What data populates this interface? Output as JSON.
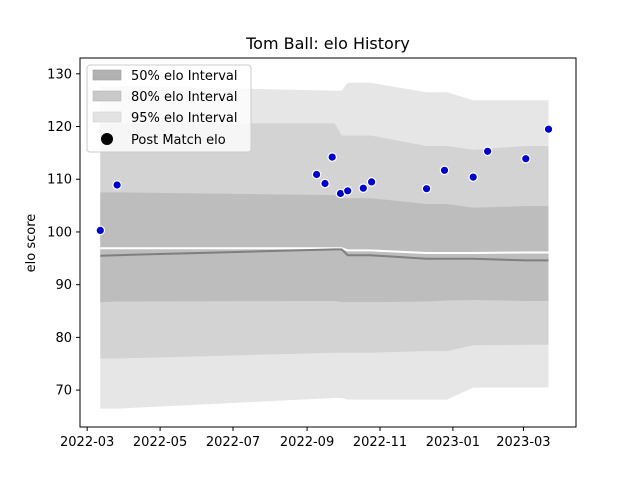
{
  "chart_data": {
    "type": "line",
    "title": "Tom Ball: elo History",
    "xlabel": "",
    "ylabel": "elo score",
    "x_type": "date",
    "xlim": [
      "2022-02-23",
      "2023-04-14"
    ],
    "ylim": [
      63.0,
      133.0
    ],
    "x_ticks": [
      "2022-03-01",
      "2022-05-01",
      "2022-07-01",
      "2022-09-01",
      "2022-11-01",
      "2023-01-01",
      "2023-03-01"
    ],
    "x_tick_labels": [
      "2022-03",
      "2022-05",
      "2022-07",
      "2022-09",
      "2022-11",
      "2023-01",
      "2023-03"
    ],
    "y_ticks": [
      70,
      80,
      90,
      100,
      110,
      120,
      130
    ],
    "y_tick_labels": [
      "70",
      "80",
      "90",
      "100",
      "110",
      "120",
      "130"
    ],
    "grid": false,
    "legend_position": "top-left",
    "legend": [
      {
        "label": "50% elo Interval",
        "kind": "band50"
      },
      {
        "label": "80% elo Interval",
        "kind": "band80"
      },
      {
        "label": "95% elo Interval",
        "kind": "band95"
      },
      {
        "label": "Post Match elo",
        "kind": "point"
      }
    ],
    "colors": {
      "band50": "#bdbdbd",
      "band80": "#d3d3d3",
      "band95": "#e6e6e6",
      "mean_line": "#7f7f7f",
      "white_line": "#ffffff",
      "point": "#0000cc",
      "point_edge": "#ffffff"
    },
    "bands": {
      "x": [
        "2022-03-12",
        "2022-03-26",
        "2022-09-24",
        "2022-09-30",
        "2022-10-05",
        "2022-10-24",
        "2022-12-10",
        "2022-12-27",
        "2023-01-18",
        "2023-03-03",
        "2023-03-22"
      ],
      "p95_upper": [
        127.6,
        127.7,
        126.8,
        126.8,
        128.3,
        128.3,
        126.5,
        126.5,
        125.0,
        125.0,
        125.0
      ],
      "p80_upper": [
        120.5,
        120.6,
        120.6,
        118.3,
        118.3,
        118.3,
        116.3,
        116.3,
        115.6,
        116.3,
        116.3
      ],
      "p50_upper": [
        107.5,
        107.5,
        107.0,
        106.4,
        106.4,
        106.4,
        105.3,
        105.3,
        104.6,
        104.9,
        104.9
      ],
      "mean": [
        95.5,
        95.6,
        96.7,
        96.7,
        95.6,
        95.6,
        94.9,
        94.9,
        94.9,
        94.6,
        94.6
      ],
      "white_line": [
        96.9,
        96.9,
        96.9,
        96.9,
        96.5,
        96.5,
        96.0,
        96.0,
        96.0,
        96.1,
        96.1
      ],
      "p50_lower": [
        86.7,
        86.8,
        86.9,
        86.7,
        86.7,
        86.7,
        86.8,
        87.0,
        87.1,
        86.9,
        86.9
      ],
      "p80_lower": [
        76.0,
        76.0,
        77.1,
        77.1,
        77.1,
        77.1,
        77.4,
        77.4,
        78.5,
        78.6,
        78.6
      ],
      "p95_lower": [
        66.5,
        66.5,
        68.5,
        68.5,
        68.2,
        68.2,
        68.2,
        68.2,
        70.5,
        70.5,
        70.5
      ]
    },
    "series": [
      {
        "name": "Post Match elo",
        "x": [
          "2022-03-12",
          "2022-03-26",
          "2022-09-09",
          "2022-09-16",
          "2022-09-22",
          "2022-09-29",
          "2022-10-05",
          "2022-10-18",
          "2022-10-25",
          "2022-12-10",
          "2022-12-25",
          "2023-01-18",
          "2023-01-30",
          "2023-03-03",
          "2023-03-22"
        ],
        "values": [
          100.3,
          108.9,
          110.9,
          109.2,
          114.2,
          107.3,
          107.8,
          108.3,
          109.5,
          108.2,
          111.7,
          110.4,
          115.3,
          113.9,
          119.5
        ]
      }
    ]
  }
}
